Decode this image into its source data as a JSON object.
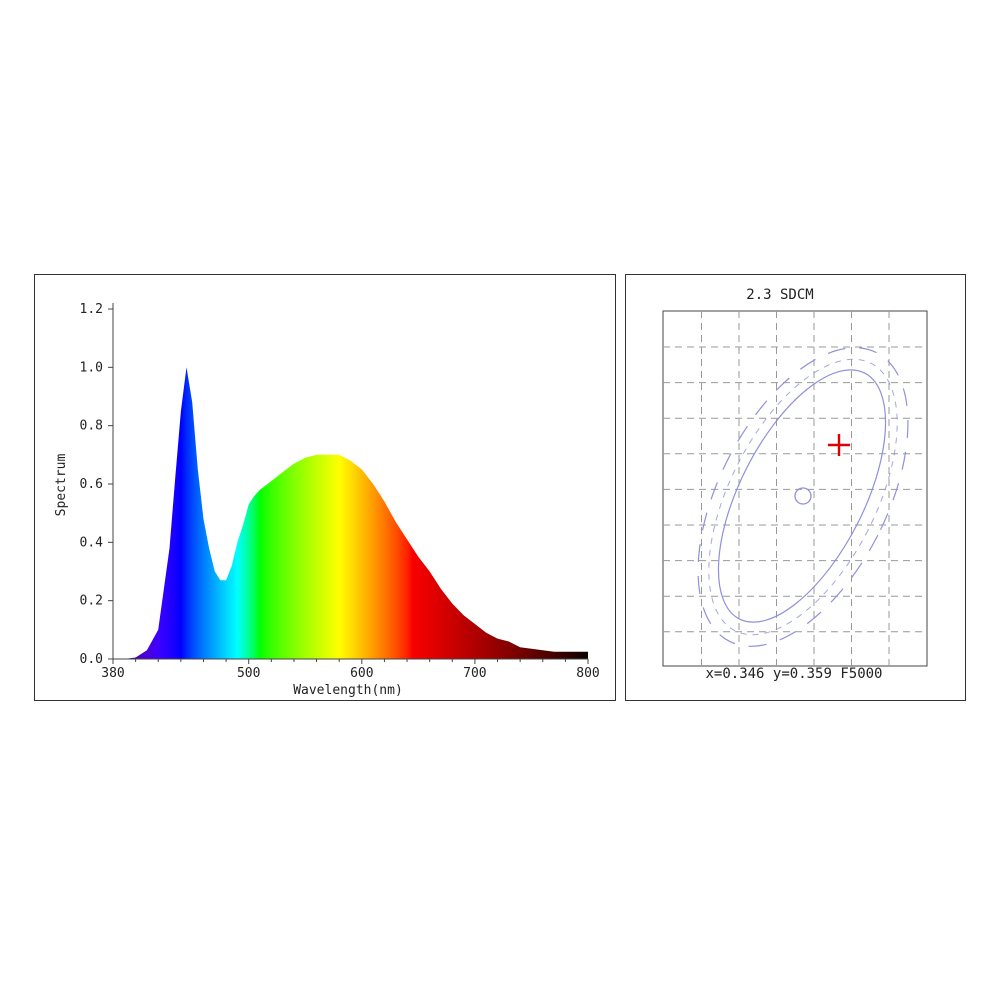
{
  "chart_data": [
    {
      "type": "area",
      "title": "",
      "xlabel": "Wavelength(nm)",
      "ylabel": "Spectrum",
      "xlim": [
        380,
        800
      ],
      "ylim": [
        0,
        1.2
      ],
      "xticks": [
        380,
        500,
        600,
        700,
        800
      ],
      "xtick_labels": [
        "380",
        "500",
        "600",
        "700",
        "800"
      ],
      "yticks": [
        0,
        0.2,
        0.4,
        0.6,
        0.8,
        1.0,
        1.2
      ],
      "ytick_labels": [
        "0.0",
        "0.2",
        "0.4",
        "0.6",
        "0.8",
        "1.0",
        "1.2"
      ],
      "fill": "wavelength-colored",
      "series": [
        {
          "x": [
            380,
            390,
            400,
            410,
            420,
            430,
            435,
            440,
            445,
            450,
            455,
            460,
            465,
            470,
            475,
            480,
            485,
            490,
            495,
            500,
            505,
            510,
            520,
            530,
            540,
            550,
            560,
            570,
            580,
            590,
            600,
            610,
            620,
            630,
            640,
            650,
            660,
            670,
            680,
            690,
            700,
            710,
            720,
            730,
            740,
            750,
            760,
            770,
            780,
            790,
            800
          ],
          "values": [
            0.0,
            0.0,
            0.005,
            0.03,
            0.1,
            0.38,
            0.62,
            0.85,
            1.0,
            0.88,
            0.65,
            0.48,
            0.38,
            0.3,
            0.27,
            0.27,
            0.32,
            0.4,
            0.46,
            0.53,
            0.56,
            0.58,
            0.61,
            0.64,
            0.67,
            0.69,
            0.7,
            0.7,
            0.7,
            0.68,
            0.65,
            0.6,
            0.54,
            0.47,
            0.41,
            0.35,
            0.3,
            0.24,
            0.19,
            0.15,
            0.12,
            0.09,
            0.07,
            0.06,
            0.04,
            0.035,
            0.03,
            0.025,
            0.025,
            0.025,
            0.025
          ]
        }
      ]
    },
    {
      "type": "scatter",
      "title": "2.3 SDCM",
      "caption": "x=0.346 y=0.359 F5000",
      "grid": true,
      "measured_point": {
        "x": 0.346,
        "y": 0.359,
        "marker": "cross",
        "color": "#e00000"
      },
      "reference": "F5000",
      "ellipse_color": "#8f8fe0",
      "marker_color": "#e00000"
    }
  ]
}
